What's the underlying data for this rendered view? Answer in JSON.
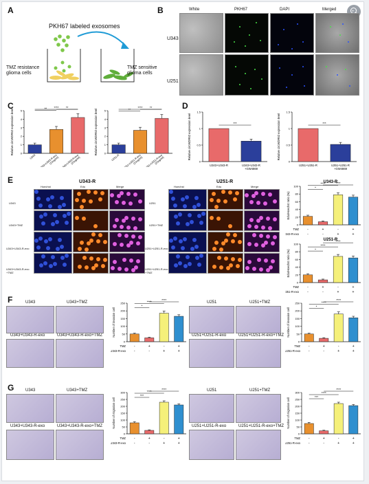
{
  "figure": {
    "panel_labels": [
      "A",
      "B",
      "C",
      "D",
      "E",
      "F",
      "G"
    ],
    "A": {
      "title": "PKH67  labeled exosomes",
      "left_label": "TMZ resistance\nglioma cells",
      "right_label": "TMZ sensitive\nglioma cells",
      "colors": {
        "exosome": "#7fc84a",
        "resistant_cell": "#f0d060",
        "sensitive_cell": "#5fae3a",
        "arrow": "#1f9bd6"
      }
    },
    "B": {
      "columns": [
        "White",
        "PKH67",
        "DAPI",
        "Merged"
      ],
      "rows": [
        "U343",
        "U251"
      ]
    },
    "E": {
      "left_title": "U343-R",
      "right_title": "U251-R",
      "columns": [
        "Hoechst",
        "Edu",
        "Merge"
      ],
      "left_rows": [
        "U343",
        "U343+TMZ",
        "U343+U343-R-exo",
        "U343+U343-R-exo\n+TMZ"
      ],
      "right_rows": [
        "U251",
        "U251+TMZ",
        "U251+U251-R-exo",
        "U251+U251-R-exo\n+TMZ"
      ]
    },
    "F": {
      "left_panels": [
        "U343",
        "U343+TMZ",
        "U343+U343-R-exo",
        "U343+U343-R-exo+TMZ"
      ],
      "right_panels": [
        "U251",
        "U251+TMZ",
        "U251+U251-R-exo",
        "U251+U251-R-exo+TMZ"
      ]
    },
    "G": {
      "left_panels": [
        "U343",
        "U343+TMZ",
        "U343+U343-R-exo",
        "U343+U343-R-exo+TMZ"
      ],
      "right_panels": [
        "U251",
        "U251+TMZ",
        "U251+U251-R-exo",
        "U251+U251-R-exo+TMZ"
      ]
    },
    "treatment_rows": {
      "tmz_label": "TMZ",
      "u343_exo_label": "U343-R-exo",
      "u251_exo_label": "U251-R-exo",
      "tmz_signs": [
        "-",
        "+",
        "-",
        "+"
      ],
      "exo_signs": [
        "-",
        "-",
        "+",
        "+"
      ]
    }
  },
  "chart_data": [
    {
      "id": "C1",
      "type": "bar",
      "categories": [
        "U343",
        "U343+U343-R-exo\n(10ug/ml)",
        "U343+U343-R-exo\n(20ug/ml)"
      ],
      "values": [
        1.0,
        2.8,
        4.2
      ],
      "errors": [
        0.2,
        0.35,
        0.45
      ],
      "colors": [
        "#2b3f9b",
        "#e8902e",
        "#e86a6a"
      ],
      "ylabel": "Relative circWDR62 expression level",
      "ylim": [
        0,
        5
      ],
      "yticks": [
        0,
        1,
        2,
        3,
        4,
        5
      ],
      "significance": [
        {
          "from": 0,
          "to": 1,
          "label": "**"
        },
        {
          "from": 1,
          "to": 2,
          "label": "**"
        },
        {
          "from": 0,
          "to": 2,
          "label": "****"
        }
      ]
    },
    {
      "id": "C2",
      "type": "bar",
      "categories": [
        "U251-R",
        "U251+U251-R-exo\n(10ug/ml)",
        "U251+U251-R-exo\n(20ug/ml)"
      ],
      "values": [
        1.0,
        2.7,
        4.1
      ],
      "errors": [
        0.2,
        0.35,
        0.45
      ],
      "colors": [
        "#2b3f9b",
        "#e8902e",
        "#e86a6a"
      ],
      "ylabel": "Relative circWDR62 expression level",
      "ylim": [
        0,
        5
      ],
      "yticks": [
        0,
        1,
        2,
        3,
        4,
        5
      ],
      "significance": [
        {
          "from": 0,
          "to": 1,
          "label": "**"
        },
        {
          "from": 1,
          "to": 2,
          "label": "**"
        },
        {
          "from": 0,
          "to": 2,
          "label": "****"
        }
      ]
    },
    {
      "id": "D1",
      "type": "bar",
      "categories": [
        "U343+U343-R",
        "U343+U343-R\n+GW4869"
      ],
      "values": [
        1.0,
        0.62
      ],
      "errors": [
        0.0,
        0.06
      ],
      "colors": [
        "#e86a6a",
        "#2b3f9b"
      ],
      "ylabel": "Relative circWDR62 expression level",
      "ylim": [
        0,
        1.5
      ],
      "yticks": [
        0,
        0.5,
        1.0,
        1.5
      ],
      "significance": [
        {
          "from": 0,
          "to": 1,
          "label": "***"
        }
      ]
    },
    {
      "id": "D2",
      "type": "bar",
      "categories": [
        "U251+U251-R",
        "U251+U251-R\n+GW4869"
      ],
      "values": [
        1.0,
        0.52
      ],
      "errors": [
        0.0,
        0.06
      ],
      "colors": [
        "#e86a6a",
        "#2b3f9b"
      ],
      "ylabel": "Relative circWDR62 expression level",
      "ylim": [
        0,
        1.5
      ],
      "yticks": [
        0,
        0.5,
        1.0,
        1.5
      ],
      "significance": [
        {
          "from": 0,
          "to": 1,
          "label": "***"
        }
      ]
    },
    {
      "id": "E1",
      "type": "bar",
      "title": "U343-R",
      "values": [
        22,
        8,
        78,
        72
      ],
      "errors": [
        3,
        2,
        5,
        5
      ],
      "colors": [
        "#e8902e",
        "#e86a6a",
        "#f5f07a",
        "#2f8fcf"
      ],
      "ylabel": "Edu/Hoechst ratio (%)",
      "ylim": [
        0,
        100
      ],
      "yticks": [
        0,
        20,
        40,
        60,
        80,
        100
      ],
      "exo_label": "U343-R-exo",
      "significance": [
        {
          "from": 0,
          "to": 1,
          "label": "*"
        },
        {
          "from": 0,
          "to": 2,
          "label": "****"
        },
        {
          "from": 1,
          "to": 3,
          "label": "****"
        }
      ]
    },
    {
      "id": "E2",
      "type": "bar",
      "title": "U251-R",
      "values": [
        20,
        7,
        68,
        64
      ],
      "errors": [
        3,
        2,
        5,
        5
      ],
      "colors": [
        "#e8902e",
        "#e86a6a",
        "#f5f07a",
        "#2f8fcf"
      ],
      "ylabel": "Edu/Hoechst ratio (%)",
      "ylim": [
        0,
        100
      ],
      "yticks": [
        0,
        20,
        40,
        60,
        80,
        100
      ],
      "exo_label": "U251-R-exo",
      "significance": [
        {
          "from": 0,
          "to": 1,
          "label": "*"
        },
        {
          "from": 0,
          "to": 2,
          "label": "****"
        },
        {
          "from": 1,
          "to": 3,
          "label": "****"
        }
      ]
    },
    {
      "id": "F1",
      "type": "bar",
      "values": [
        50,
        25,
        185,
        165
      ],
      "errors": [
        5,
        4,
        14,
        10
      ],
      "colors": [
        "#e8902e",
        "#e86a6a",
        "#f5f07a",
        "#2f8fcf"
      ],
      "ylabel": "Number of invasion cell",
      "ylim": [
        0,
        250
      ],
      "yticks": [
        0,
        50,
        100,
        150,
        200,
        250
      ],
      "exo_label": "U343-R-exo",
      "significance": [
        {
          "from": 0,
          "to": 1,
          "label": "*"
        },
        {
          "from": 0,
          "to": 2,
          "label": "****"
        },
        {
          "from": 1,
          "to": 3,
          "label": "****"
        }
      ]
    },
    {
      "id": "F2",
      "type": "bar",
      "values": [
        50,
        22,
        180,
        155
      ],
      "errors": [
        5,
        4,
        14,
        10
      ],
      "colors": [
        "#e8902e",
        "#e86a6a",
        "#f5f07a",
        "#2f8fcf"
      ],
      "ylabel": "Number of invasion cell",
      "ylim": [
        0,
        250
      ],
      "yticks": [
        0,
        50,
        100,
        150,
        200,
        250
      ],
      "exo_label": "U251-R-exo",
      "significance": [
        {
          "from": 0,
          "to": 1,
          "label": "*"
        },
        {
          "from": 0,
          "to": 2,
          "label": "****"
        },
        {
          "from": 1,
          "to": 3,
          "label": "****"
        }
      ]
    },
    {
      "id": "G1",
      "type": "bar",
      "values": [
        80,
        25,
        230,
        210
      ],
      "errors": [
        8,
        4,
        10,
        8
      ],
      "colors": [
        "#e8902e",
        "#e86a6a",
        "#f5f07a",
        "#2f8fcf"
      ],
      "ylabel": "Number of migration cell",
      "ylim": [
        0,
        300
      ],
      "yticks": [
        0,
        50,
        100,
        150,
        200,
        250,
        300
      ],
      "exo_label": "U343-R-exo",
      "significance": [
        {
          "from": 0,
          "to": 1,
          "label": "***"
        },
        {
          "from": 0,
          "to": 2,
          "label": "****"
        },
        {
          "from": 1,
          "to": 3,
          "label": "****"
        }
      ]
    },
    {
      "id": "G2",
      "type": "bar",
      "values": [
        75,
        22,
        220,
        205
      ],
      "errors": [
        8,
        4,
        10,
        8
      ],
      "colors": [
        "#e8902e",
        "#e86a6a",
        "#f5f07a",
        "#2f8fcf"
      ],
      "ylabel": "Number of migration cell",
      "ylim": [
        0,
        300
      ],
      "yticks": [
        0,
        50,
        100,
        150,
        200,
        250,
        300
      ],
      "exo_label": "U251-R-exo",
      "significance": [
        {
          "from": 0,
          "to": 1,
          "label": "***"
        },
        {
          "from": 0,
          "to": 2,
          "label": "****"
        },
        {
          "from": 1,
          "to": 3,
          "label": "****"
        }
      ]
    }
  ]
}
